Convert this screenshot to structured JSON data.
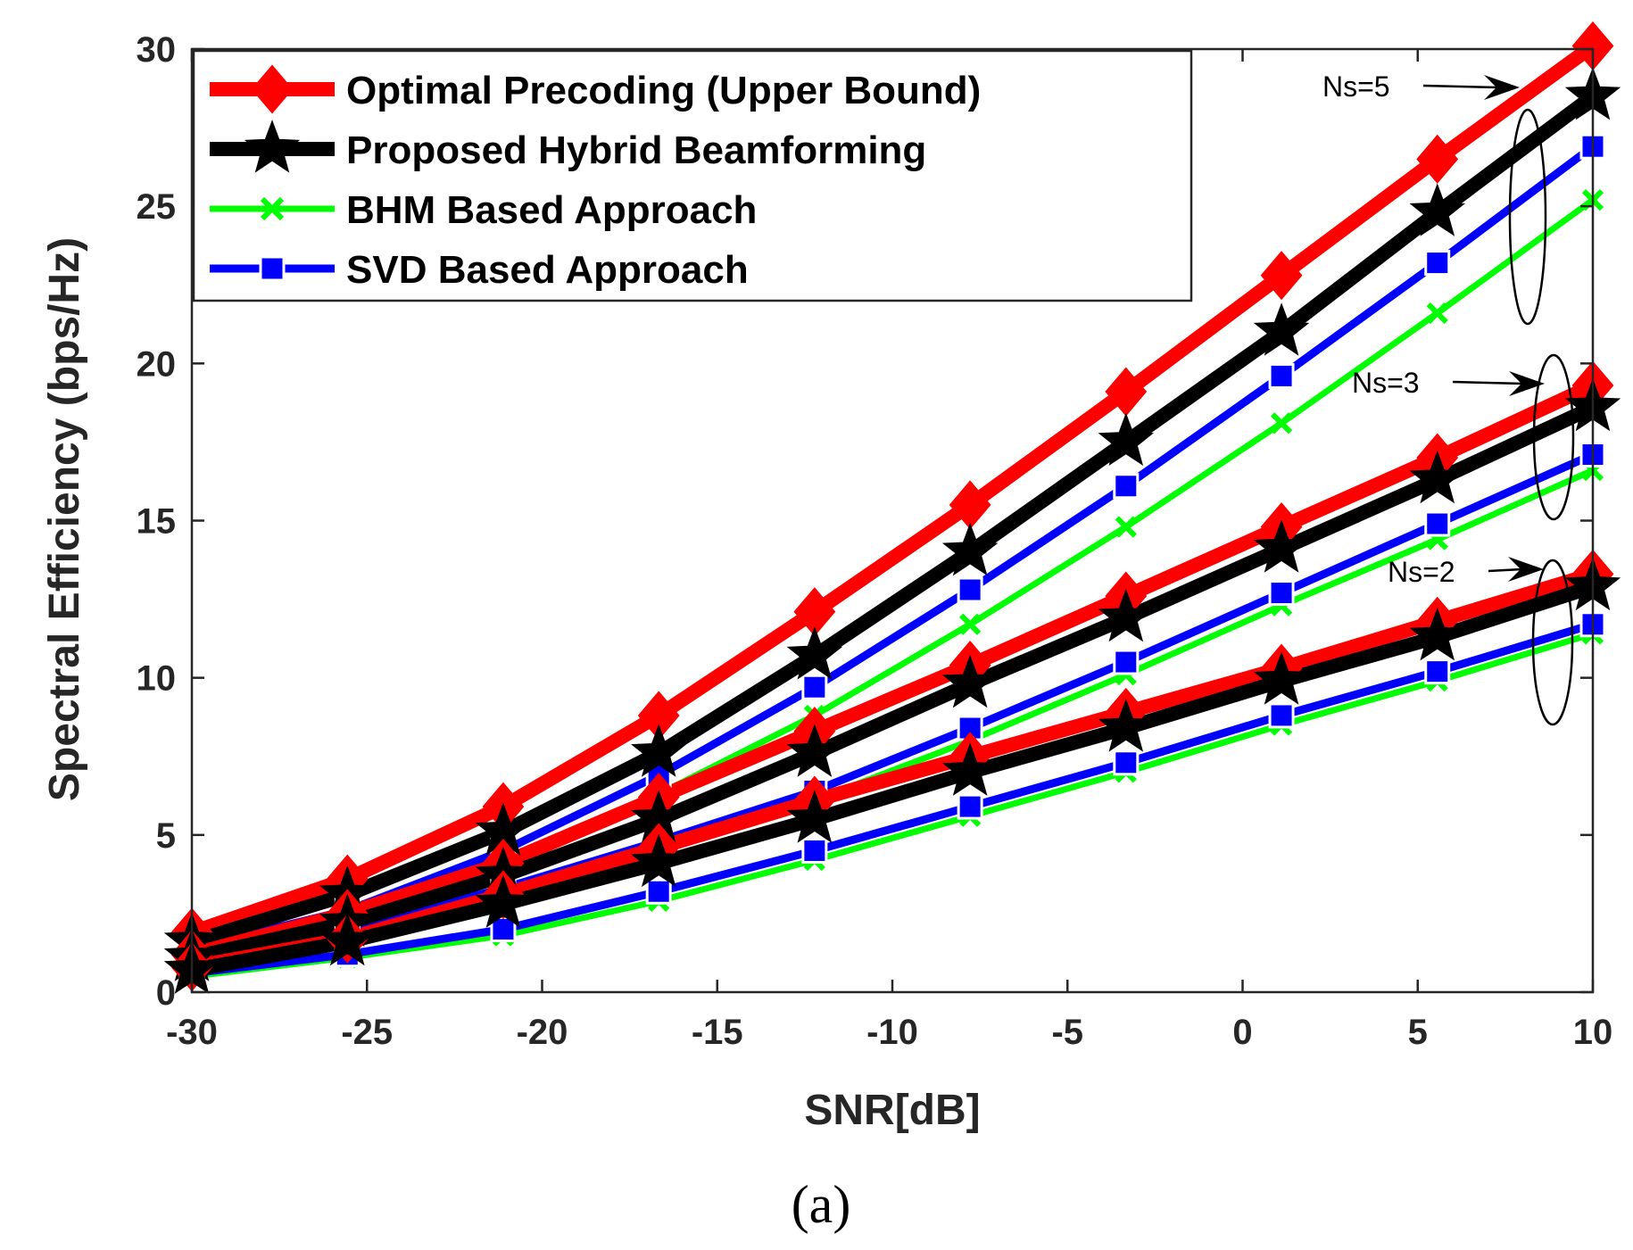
{
  "chart_data": {
    "type": "line",
    "xlabel": "SNR[dB]",
    "ylabel": "Spectral Efficiency (bps/Hz)",
    "caption": "(a)",
    "xlim": [
      -30,
      10
    ],
    "ylim": [
      0,
      30
    ],
    "xticks": [
      -30,
      -25,
      -20,
      -15,
      -10,
      -5,
      0,
      5,
      10
    ],
    "xtick_labels": [
      "-30",
      "-25",
      "-20",
      "-15",
      "-10",
      "-5",
      "0",
      "5",
      "10"
    ],
    "yticks": [
      0,
      5,
      10,
      15,
      20,
      25,
      30
    ],
    "ytick_labels": [
      "0",
      "5",
      "10",
      "15",
      "20",
      "25",
      "30"
    ],
    "grid": false,
    "legend_position": "top-left",
    "x": [
      -30,
      -25.56,
      -21.11,
      -16.67,
      -12.22,
      -7.78,
      -3.33,
      1.11,
      5.56,
      10
    ],
    "legend": [
      {
        "label": "Optimal Precoding (Upper Bound)",
        "color": "#ff0000",
        "marker": "diamond"
      },
      {
        "label": "Proposed Hybrid Beamforming",
        "color": "#000000",
        "marker": "star"
      },
      {
        "label": "BHM Based Approach",
        "color": "#00ff00",
        "marker": "x"
      },
      {
        "label": "SVD Based Approach",
        "color": "#0000ff",
        "marker": "square"
      }
    ],
    "groups": [
      {
        "annotation": "Ns=5",
        "series": [
          {
            "method": 0,
            "values": [
              1.9,
              3.6,
              5.9,
              8.8,
              12.1,
              15.5,
              19.1,
              22.8,
              26.5,
              30.1
            ]
          },
          {
            "method": 1,
            "values": [
              1.6,
              3.1,
              5.1,
              7.6,
              10.7,
              14.0,
              17.5,
              21.0,
              24.8,
              28.5
            ]
          },
          {
            "method": 2,
            "values": [
              1.0,
              2.3,
              4.2,
              6.3,
              8.8,
              11.7,
              14.8,
              18.1,
              21.6,
              25.2
            ]
          },
          {
            "method": 3,
            "values": [
              1.4,
              2.6,
              4.5,
              6.9,
              9.7,
              12.8,
              16.1,
              19.6,
              23.2,
              26.9
            ]
          }
        ]
      },
      {
        "annotation": "Ns=3",
        "series": [
          {
            "method": 0,
            "values": [
              1.2,
              2.5,
              4.1,
              6.2,
              8.3,
              10.4,
              12.6,
              14.8,
              17.0,
              19.3
            ]
          },
          {
            "method": 1,
            "values": [
              1.1,
              2.2,
              3.7,
              5.5,
              7.6,
              9.8,
              11.9,
              14.1,
              16.3,
              18.6
            ]
          },
          {
            "method": 2,
            "values": [
              0.9,
              1.8,
              3.0,
              4.5,
              6.1,
              8.0,
              10.1,
              12.3,
              14.4,
              16.6
            ]
          },
          {
            "method": 3,
            "values": [
              1.0,
              2.0,
              3.3,
              4.8,
              6.4,
              8.4,
              10.5,
              12.7,
              14.9,
              17.1
            ]
          }
        ]
      },
      {
        "annotation": "Ns=2",
        "series": [
          {
            "method": 0,
            "values": [
              0.8,
              1.7,
              3.1,
              4.6,
              6.1,
              7.5,
              8.9,
              10.3,
              11.8,
              13.3
            ]
          },
          {
            "method": 1,
            "values": [
              0.7,
              1.6,
              2.8,
              4.1,
              5.5,
              7.0,
              8.4,
              9.9,
              11.3,
              12.9
            ]
          },
          {
            "method": 2,
            "values": [
              0.5,
              1.1,
              1.8,
              2.9,
              4.2,
              5.6,
              7.0,
              8.5,
              9.9,
              11.4
            ]
          },
          {
            "method": 3,
            "values": [
              0.6,
              1.2,
              2.0,
              3.2,
              4.5,
              5.9,
              7.3,
              8.8,
              10.2,
              11.7
            ]
          }
        ]
      }
    ]
  }
}
